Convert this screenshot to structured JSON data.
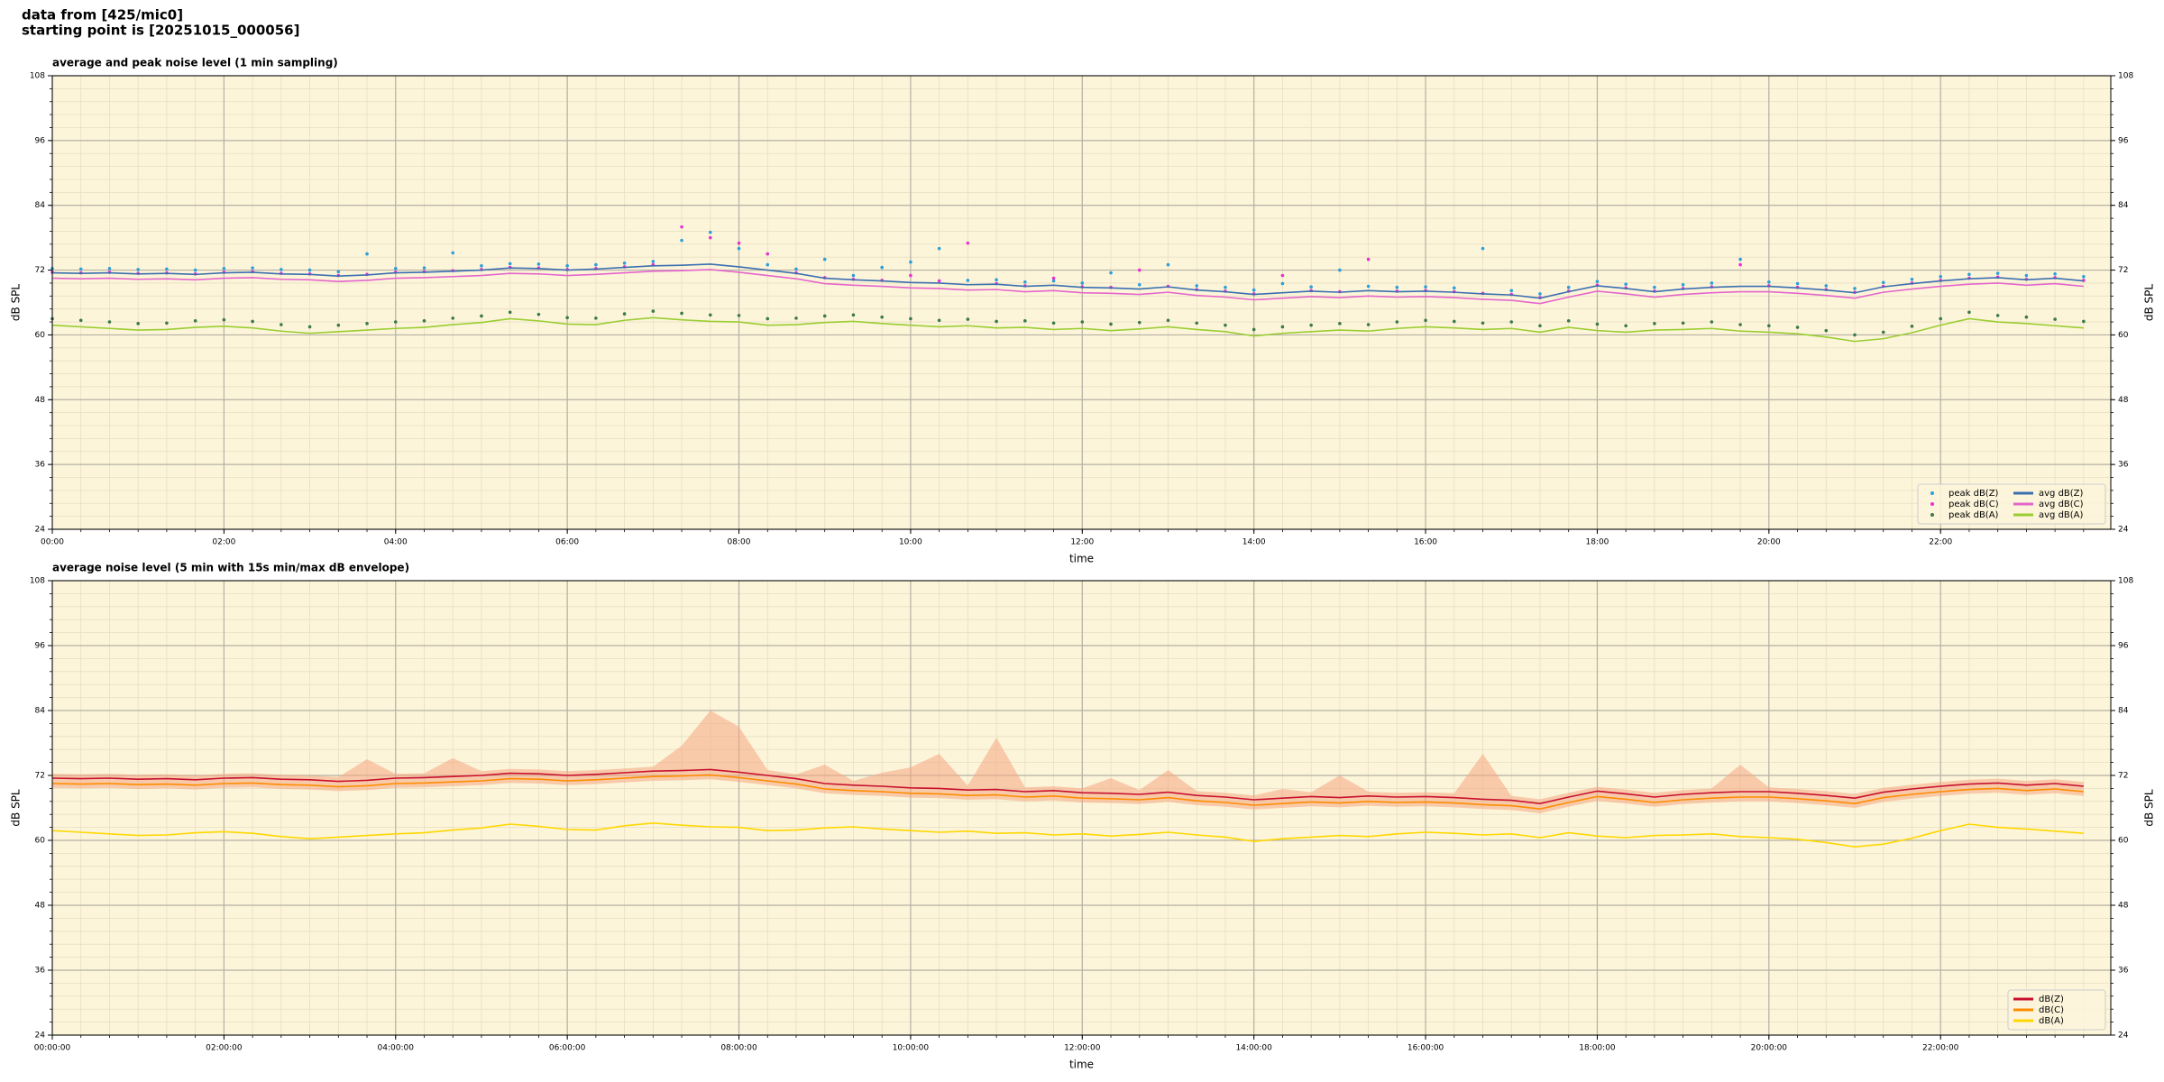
{
  "header": [
    "data from [425/mic0]",
    "starting point is [20251015_000056]"
  ],
  "chart_data": [
    {
      "type": "line",
      "title": "average and peak noise level (1 min sampling)",
      "xlabel": "time",
      "ylabel": "dB SPL",
      "x": [
        "00:00",
        "00:20",
        "00:40",
        "01:00",
        "01:20",
        "01:40",
        "02:00",
        "02:20",
        "02:40",
        "03:00",
        "03:20",
        "03:40",
        "04:00",
        "04:20",
        "04:40",
        "05:00",
        "05:20",
        "05:40",
        "06:00",
        "06:20",
        "06:40",
        "07:00",
        "07:20",
        "07:40",
        "08:00",
        "08:20",
        "08:40",
        "09:00",
        "09:20",
        "09:40",
        "10:00",
        "10:20",
        "10:40",
        "11:00",
        "11:20",
        "11:40",
        "12:00",
        "12:20",
        "12:40",
        "13:00",
        "13:20",
        "13:40",
        "14:00",
        "14:20",
        "14:40",
        "15:00",
        "15:20",
        "15:40",
        "16:00",
        "16:20",
        "16:40",
        "17:00",
        "17:20",
        "17:40",
        "18:00",
        "18:20",
        "18:40",
        "19:00",
        "19:20",
        "19:40",
        "20:00",
        "20:20",
        "20:40",
        "21:00",
        "21:20",
        "21:40",
        "22:00",
        "22:20",
        "22:40",
        "23:00",
        "23:20",
        "23:40"
      ],
      "xlim": [
        "00:00",
        "23:59"
      ],
      "xticks": [
        "00:00",
        "02:00",
        "04:00",
        "06:00",
        "08:00",
        "10:00",
        "12:00",
        "14:00",
        "16:00",
        "18:00",
        "20:00",
        "22:00"
      ],
      "ylim": [
        24,
        108
      ],
      "yticks": [
        24,
        36,
        48,
        60,
        72,
        84,
        96,
        108
      ],
      "grid": true,
      "legend": "lower right",
      "legend_columns": 2,
      "series": [
        {
          "name": "peak dB(Z)",
          "kind": "scatter",
          "color": "#2b9fd9",
          "values": [
            72.3,
            72.2,
            72.3,
            72.1,
            72.2,
            72.0,
            72.3,
            72.4,
            72.1,
            72.0,
            71.7,
            75.0,
            72.3,
            72.4,
            75.2,
            72.8,
            73.2,
            73.1,
            72.8,
            73.0,
            73.3,
            73.6,
            77.5,
            79.0,
            76.0,
            73.0,
            72.2,
            74.0,
            71.0,
            72.5,
            73.5,
            76.0,
            70.1,
            70.2,
            69.8,
            70.0,
            69.6,
            71.5,
            69.3,
            73.0,
            69.1,
            68.8,
            68.3,
            69.5,
            68.9,
            72.0,
            69.0,
            68.8,
            68.9,
            68.7,
            76.0,
            68.2,
            67.6,
            68.8,
            69.9,
            69.4,
            68.8,
            69.3,
            69.6,
            74.0,
            69.8,
            69.5,
            69.1,
            68.6,
            69.7,
            70.3,
            70.8,
            71.2,
            71.4,
            71.0,
            71.3,
            70.8
          ]
        },
        {
          "name": "peak dB(C)",
          "kind": "scatter",
          "color": "#e830d0",
          "values": [
            71.6,
            71.5,
            71.6,
            71.4,
            71.5,
            71.3,
            71.6,
            71.7,
            71.4,
            71.3,
            71.0,
            71.2,
            71.6,
            71.7,
            71.9,
            72.1,
            72.5,
            72.4,
            72.1,
            72.3,
            72.6,
            73.0,
            80.0,
            78.0,
            77.0,
            75.0,
            71.5,
            70.6,
            70.3,
            70.1,
            71.0,
            70.0,
            77.0,
            69.5,
            69.1,
            70.5,
            68.9,
            68.8,
            72.0,
            69.0,
            68.4,
            68.1,
            67.6,
            71.0,
            68.2,
            68.0,
            74.0,
            68.1,
            68.2,
            68.0,
            67.7,
            67.5,
            66.9,
            68.1,
            69.2,
            68.7,
            68.1,
            68.6,
            68.9,
            73.0,
            69.1,
            68.8,
            68.4,
            67.9,
            69.0,
            69.6,
            70.1,
            70.5,
            70.7,
            70.3,
            70.6,
            70.1
          ]
        },
        {
          "name": "peak dB(A)",
          "kind": "scatter",
          "color": "#3a7a4a",
          "values": [
            63.0,
            62.7,
            62.4,
            62.1,
            62.2,
            62.6,
            62.8,
            62.5,
            61.9,
            61.5,
            61.8,
            62.1,
            62.4,
            62.6,
            63.1,
            63.5,
            64.2,
            63.8,
            63.2,
            63.1,
            63.9,
            64.4,
            64.0,
            63.7,
            63.6,
            63.0,
            63.1,
            63.5,
            63.7,
            63.3,
            63.0,
            62.7,
            62.9,
            62.5,
            62.6,
            62.2,
            62.4,
            62.0,
            62.3,
            62.7,
            62.2,
            61.8,
            61.0,
            61.5,
            61.8,
            62.1,
            61.9,
            62.4,
            62.7,
            62.5,
            62.2,
            62.4,
            61.7,
            62.6,
            62.0,
            61.7,
            62.1,
            62.2,
            62.4,
            61.9,
            61.7,
            61.4,
            60.8,
            60.0,
            60.5,
            61.6,
            63.0,
            64.2,
            63.6,
            63.3,
            62.9,
            62.5
          ]
        },
        {
          "name": "avg dB(Z)",
          "kind": "line",
          "color": "#3b6fb0",
          "values": [
            71.5,
            71.4,
            71.5,
            71.3,
            71.4,
            71.2,
            71.5,
            71.6,
            71.3,
            71.2,
            70.9,
            71.1,
            71.5,
            71.6,
            71.8,
            72.0,
            72.4,
            72.3,
            72.0,
            72.2,
            72.5,
            72.8,
            72.9,
            73.1,
            72.6,
            72.0,
            71.4,
            70.5,
            70.2,
            70.0,
            69.7,
            69.6,
            69.3,
            69.4,
            69.0,
            69.2,
            68.8,
            68.7,
            68.5,
            68.9,
            68.3,
            68.0,
            67.5,
            67.8,
            68.1,
            67.9,
            68.2,
            68.0,
            68.1,
            67.9,
            67.6,
            67.4,
            66.8,
            68.0,
            69.1,
            68.6,
            68.0,
            68.5,
            68.8,
            69.0,
            69.0,
            68.7,
            68.3,
            67.8,
            68.9,
            69.5,
            70.0,
            70.4,
            70.6,
            70.2,
            70.5,
            70.0
          ]
        },
        {
          "name": "avg dB(C)",
          "kind": "line",
          "color": "#e466cc",
          "values": [
            70.5,
            70.4,
            70.5,
            70.3,
            70.4,
            70.2,
            70.5,
            70.6,
            70.3,
            70.2,
            69.9,
            70.1,
            70.5,
            70.6,
            70.8,
            71.0,
            71.4,
            71.3,
            71.0,
            71.2,
            71.5,
            71.8,
            71.9,
            72.1,
            71.6,
            71.0,
            70.4,
            69.5,
            69.2,
            69.0,
            68.7,
            68.6,
            68.3,
            68.4,
            68.0,
            68.2,
            67.8,
            67.7,
            67.5,
            67.9,
            67.3,
            67.0,
            66.5,
            66.8,
            67.1,
            66.9,
            67.2,
            67.0,
            67.1,
            66.9,
            66.6,
            66.4,
            65.8,
            67.0,
            68.1,
            67.6,
            67.0,
            67.5,
            67.8,
            68.0,
            68.0,
            67.7,
            67.3,
            66.8,
            67.9,
            68.5,
            69.0,
            69.4,
            69.6,
            69.2,
            69.5,
            69.0
          ]
        },
        {
          "name": "avg dB(A)",
          "kind": "line",
          "color": "#9acd32",
          "values": [
            61.8,
            61.5,
            61.2,
            60.9,
            61.0,
            61.4,
            61.6,
            61.3,
            60.7,
            60.3,
            60.6,
            60.9,
            61.2,
            61.4,
            61.9,
            62.3,
            63.0,
            62.6,
            62.0,
            61.9,
            62.7,
            63.2,
            62.8,
            62.5,
            62.4,
            61.8,
            61.9,
            62.3,
            62.5,
            62.1,
            61.8,
            61.5,
            61.7,
            61.3,
            61.4,
            61.0,
            61.2,
            60.8,
            61.1,
            61.5,
            61.0,
            60.6,
            59.8,
            60.3,
            60.6,
            60.9,
            60.7,
            61.2,
            61.5,
            61.3,
            61.0,
            61.2,
            60.5,
            61.4,
            60.8,
            60.5,
            60.9,
            61.0,
            61.2,
            60.7,
            60.5,
            60.2,
            59.6,
            58.8,
            59.3,
            60.4,
            61.8,
            63.0,
            62.4,
            62.1,
            61.7,
            61.3
          ]
        }
      ]
    },
    {
      "type": "line",
      "title": "average noise level (5 min with 15s min/max dB envelope)",
      "xlabel": "time",
      "ylabel": "dB SPL",
      "x": [
        "00:00",
        "00:20",
        "00:40",
        "01:00",
        "01:20",
        "01:40",
        "02:00",
        "02:20",
        "02:40",
        "03:00",
        "03:20",
        "03:40",
        "04:00",
        "04:20",
        "04:40",
        "05:00",
        "05:20",
        "05:40",
        "06:00",
        "06:20",
        "06:40",
        "07:00",
        "07:20",
        "07:40",
        "08:00",
        "08:20",
        "08:40",
        "09:00",
        "09:20",
        "09:40",
        "10:00",
        "10:20",
        "10:40",
        "11:00",
        "11:20",
        "11:40",
        "12:00",
        "12:20",
        "12:40",
        "13:00",
        "13:20",
        "13:40",
        "14:00",
        "14:20",
        "14:40",
        "15:00",
        "15:20",
        "15:40",
        "16:00",
        "16:20",
        "16:40",
        "17:00",
        "17:20",
        "17:40",
        "18:00",
        "18:20",
        "18:40",
        "19:00",
        "19:20",
        "19:40",
        "20:00",
        "20:20",
        "20:40",
        "21:00",
        "21:20",
        "21:40",
        "22:00",
        "22:20",
        "22:40",
        "23:00",
        "23:20",
        "23:40"
      ],
      "xlim": [
        "00:00:00",
        "23:59:00"
      ],
      "xticks": [
        "00:00:00",
        "02:00:00",
        "04:00:00",
        "06:00:00",
        "08:00:00",
        "10:00:00",
        "12:00:00",
        "14:00:00",
        "16:00:00",
        "18:00:00",
        "20:00:00",
        "22:00:00"
      ],
      "ylim": [
        24,
        108
      ],
      "yticks": [
        24,
        36,
        48,
        60,
        72,
        84,
        96,
        108
      ],
      "grid": true,
      "legend": "lower right",
      "legend_columns": 1,
      "envelope": {
        "color": "#f4a582",
        "high": [
          72.3,
          72.2,
          72.3,
          72.1,
          72.2,
          72.0,
          72.3,
          72.4,
          72.1,
          72.0,
          71.7,
          75.0,
          72.3,
          72.4,
          75.2,
          72.8,
          73.2,
          73.1,
          72.8,
          73.0,
          73.3,
          73.6,
          77.5,
          84.0,
          81.0,
          73.0,
          72.2,
          74.0,
          71.0,
          72.5,
          73.5,
          76.0,
          70.1,
          79.0,
          69.8,
          70.0,
          69.6,
          71.5,
          69.3,
          73.0,
          69.1,
          68.8,
          68.3,
          69.5,
          68.9,
          72.0,
          69.0,
          68.8,
          68.9,
          68.7,
          76.0,
          68.2,
          67.6,
          68.8,
          69.9,
          69.4,
          68.8,
          69.3,
          69.6,
          74.0,
          69.8,
          69.5,
          69.1,
          68.6,
          69.7,
          70.3,
          70.8,
          71.2,
          71.4,
          71.0,
          71.3,
          70.8
        ],
        "low": [
          69.7,
          69.6,
          69.7,
          69.5,
          69.6,
          69.4,
          69.7,
          69.8,
          69.5,
          69.4,
          69.1,
          69.3,
          69.7,
          69.8,
          70.0,
          70.2,
          70.6,
          70.5,
          70.2,
          70.4,
          70.7,
          71.0,
          71.1,
          71.3,
          70.8,
          70.2,
          69.6,
          68.7,
          68.4,
          68.2,
          67.9,
          67.8,
          67.5,
          67.6,
          67.2,
          67.4,
          67.0,
          66.9,
          66.7,
          67.1,
          66.5,
          66.2,
          65.7,
          66.0,
          66.3,
          66.1,
          66.4,
          66.2,
          66.3,
          66.1,
          65.8,
          65.6,
          65.0,
          66.2,
          67.3,
          66.8,
          66.2,
          66.7,
          67.0,
          67.2,
          67.2,
          66.9,
          66.5,
          66.0,
          67.1,
          67.7,
          68.2,
          68.6,
          68.8,
          68.4,
          68.7,
          68.2
        ]
      },
      "series": [
        {
          "name": "dB(Z)",
          "kind": "line",
          "color": "#c8102e",
          "values": [
            71.5,
            71.4,
            71.5,
            71.3,
            71.4,
            71.2,
            71.5,
            71.6,
            71.3,
            71.2,
            70.9,
            71.1,
            71.5,
            71.6,
            71.8,
            72.0,
            72.4,
            72.3,
            72.0,
            72.2,
            72.5,
            72.8,
            72.9,
            73.1,
            72.6,
            72.0,
            71.4,
            70.5,
            70.2,
            70.0,
            69.7,
            69.6,
            69.3,
            69.4,
            69.0,
            69.2,
            68.8,
            68.7,
            68.5,
            68.9,
            68.3,
            68.0,
            67.5,
            67.8,
            68.1,
            67.9,
            68.2,
            68.0,
            68.1,
            67.9,
            67.6,
            67.4,
            66.8,
            68.0,
            69.1,
            68.6,
            68.0,
            68.5,
            68.8,
            69.0,
            69.0,
            68.7,
            68.3,
            67.8,
            68.9,
            69.5,
            70.0,
            70.4,
            70.6,
            70.2,
            70.5,
            70.0
          ]
        },
        {
          "name": "dB(C)",
          "kind": "line",
          "color": "#ff8c00",
          "values": [
            70.5,
            70.4,
            70.5,
            70.3,
            70.4,
            70.2,
            70.5,
            70.6,
            70.3,
            70.2,
            69.9,
            70.1,
            70.5,
            70.6,
            70.8,
            71.0,
            71.4,
            71.3,
            71.0,
            71.2,
            71.5,
            71.8,
            71.9,
            72.1,
            71.6,
            71.0,
            70.4,
            69.5,
            69.2,
            69.0,
            68.7,
            68.6,
            68.3,
            68.4,
            68.0,
            68.2,
            67.8,
            67.7,
            67.5,
            67.9,
            67.3,
            67.0,
            66.5,
            66.8,
            67.1,
            66.9,
            67.2,
            67.0,
            67.1,
            66.9,
            66.6,
            66.4,
            65.8,
            67.0,
            68.1,
            67.6,
            67.0,
            67.5,
            67.8,
            68.0,
            68.0,
            67.7,
            67.3,
            66.8,
            67.9,
            68.5,
            69.0,
            69.4,
            69.6,
            69.2,
            69.5,
            69.0
          ]
        },
        {
          "name": "dB(A)",
          "kind": "line",
          "color": "#ffd700",
          "values": [
            61.8,
            61.5,
            61.2,
            60.9,
            61.0,
            61.4,
            61.6,
            61.3,
            60.7,
            60.3,
            60.6,
            60.9,
            61.2,
            61.4,
            61.9,
            62.3,
            63.0,
            62.6,
            62.0,
            61.9,
            62.7,
            63.2,
            62.8,
            62.5,
            62.4,
            61.8,
            61.9,
            62.3,
            62.5,
            62.1,
            61.8,
            61.5,
            61.7,
            61.3,
            61.4,
            61.0,
            61.2,
            60.8,
            61.1,
            61.5,
            61.0,
            60.6,
            59.8,
            60.3,
            60.6,
            60.9,
            60.7,
            61.2,
            61.5,
            61.3,
            61.0,
            61.2,
            60.5,
            61.4,
            60.8,
            60.5,
            60.9,
            61.0,
            61.2,
            60.7,
            60.5,
            60.2,
            59.6,
            58.8,
            59.3,
            60.4,
            61.8,
            63.0,
            62.4,
            62.1,
            61.7,
            61.3
          ]
        }
      ]
    }
  ]
}
